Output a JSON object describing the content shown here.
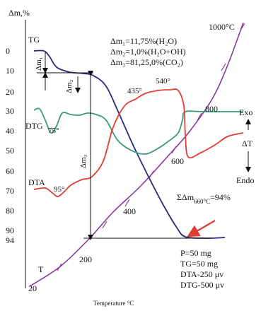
{
  "chart_data": {
    "type": "line",
    "title": "",
    "xlabel": "Temperature °C",
    "ylabel": "Δm,%",
    "y_tick_labels": [
      "0",
      "10",
      "20",
      "30",
      "40",
      "50",
      "60",
      "70",
      "80",
      "90",
      "94"
    ],
    "ylim": [
      0,
      94
    ],
    "grid": false,
    "right_axis": {
      "top": "Exo",
      "middle": "ΔT",
      "bottom": "Endo"
    },
    "series": [
      {
        "name": "TG",
        "color": "#2b2b7a"
      },
      {
        "name": "DTG",
        "color": "#3a9a7a"
      },
      {
        "name": "DTA",
        "color": "#e23c32"
      },
      {
        "name": "T",
        "color": "#8a3a9a"
      }
    ],
    "temperature_labels": [
      "20",
      "200",
      "400",
      "600",
      "800",
      "1000°C"
    ],
    "peak_labels": {
      "dtg_75": "75°",
      "dta_95": "95°",
      "dta_435": "435°",
      "dta_540": "540°"
    },
    "mass_losses": [
      {
        "label": "Δm₁",
        "text": "Δm₁=11,75%(H₂O)"
      },
      {
        "label": "Δm₂",
        "text": "Δm₂=1,0%(H₂O+OH)"
      },
      {
        "label": "Δm₃",
        "text": "Δm₃=81,25,0%(CO₂)"
      }
    ],
    "total_loss": {
      "text": "ΣΔm",
      "sub": "660°C",
      "value": "=94%"
    },
    "conditions": [
      "P=50 mg",
      "TG=50 mg",
      "DTA-250 μv",
      "DTG-500 μv"
    ]
  }
}
